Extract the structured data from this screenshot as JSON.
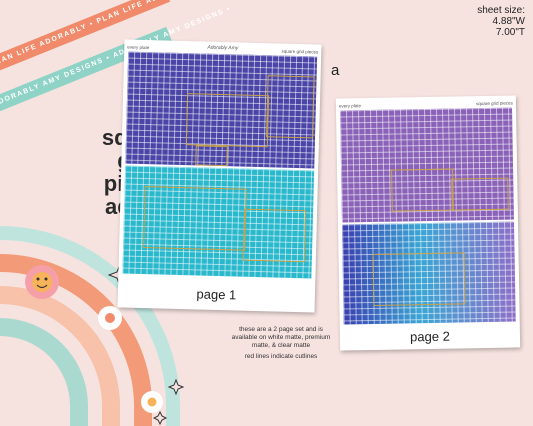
{
  "ribbons": {
    "top": "PLAN LIFE ADORABLY • PLAN LIFE ADORABLY • PLAN",
    "bottom": "ADORABLY AMY DESIGNS • ADORABLY AMY DESIGNS •"
  },
  "sheet_size": {
    "label": "sheet size:",
    "width": "4.88\"W",
    "height": "7.00\"T"
  },
  "title": [
    "square grid",
    "pieces",
    "addon"
  ],
  "variant_letter": "a",
  "note": {
    "availability": "these are a 2 page set and is available on white matte, premium matte, & clear matte",
    "cutlines": "red lines indicate cutlines"
  },
  "pages": [
    {
      "label": "page 1",
      "left_header": "every plate",
      "center_header": "Adorably Amy",
      "right_header": "square grid pieces",
      "top_color": "#4a45a6",
      "bottom_color": "#2ab8cc"
    },
    {
      "label": "page 2",
      "left_header": "every plate",
      "center_header": "",
      "right_header": "square grid pieces",
      "top_color": "#8a62b8",
      "bottom_color": "#4f7fd0"
    }
  ],
  "colors": {
    "background": "#f6e3e0",
    "coral": "#f08a6a",
    "mint": "#8fd3c7",
    "cutline": "#c9a24a"
  },
  "icons": [
    "rainbow-icon",
    "smiley-flower-icon",
    "daisy-icon",
    "sparkle-icon"
  ]
}
